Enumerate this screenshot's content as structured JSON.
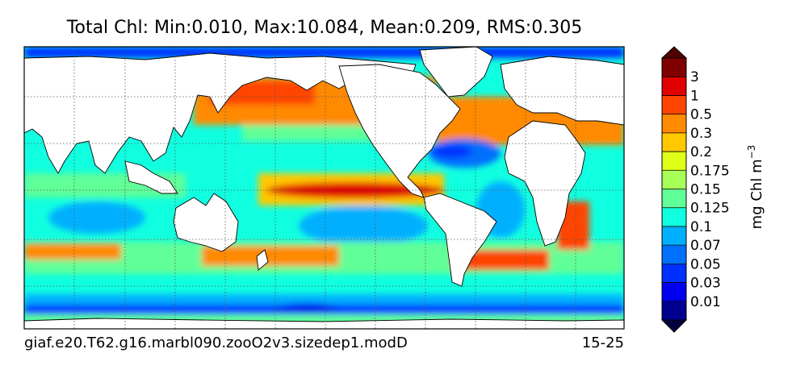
{
  "title": "Total Chl: Min:0.010, Max:10.084, Mean:0.209, RMS:0.305",
  "footer": {
    "left": "giaf.e20.T62.g16.marbl090.zooO2v3.sizedep1.modD",
    "right": "15-25"
  },
  "colorbar": {
    "levels": [
      0.01,
      0.03,
      0.05,
      0.07,
      0.1,
      0.125,
      0.15,
      0.175,
      0.2,
      0.3,
      0.5,
      1,
      3
    ],
    "colors": [
      "#00008f",
      "#0000ee",
      "#0030ff",
      "#0070ff",
      "#00b0ff",
      "#10ffe0",
      "#60ff98",
      "#a8ff58",
      "#e0ff18",
      "#ffc800",
      "#ff8a00",
      "#ff4400",
      "#e00000",
      "#800000"
    ],
    "under_color": "#000040",
    "over_color": "#500000",
    "label": "mg Chl m",
    "label_exponent": "−3"
  }
}
